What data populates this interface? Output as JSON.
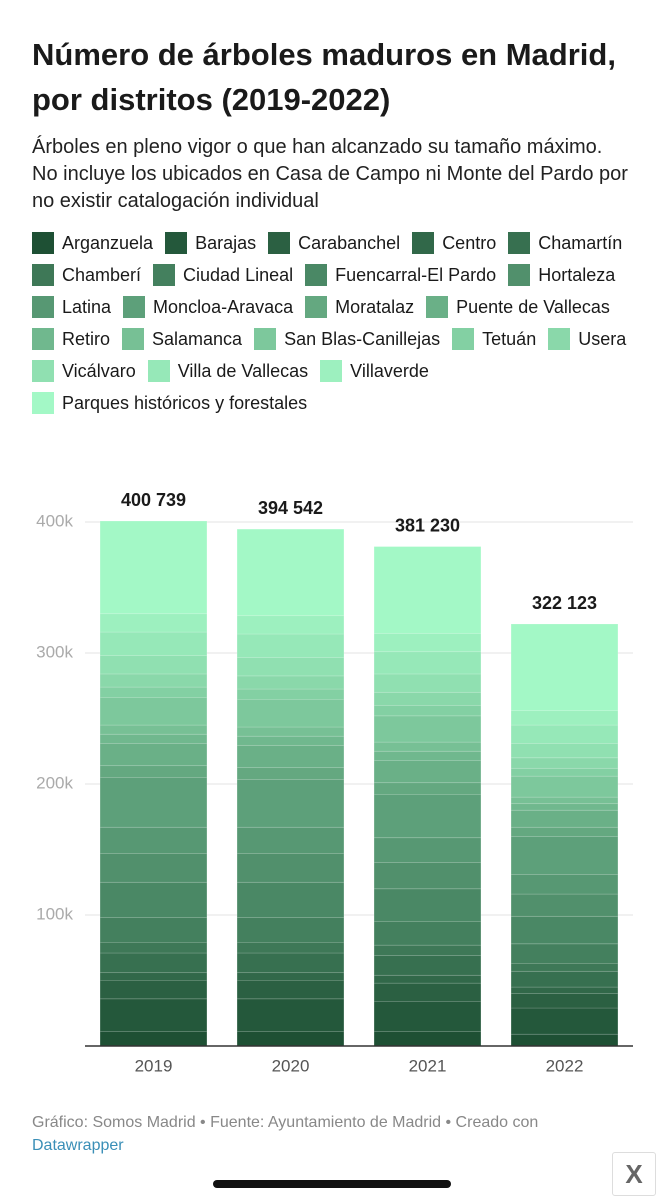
{
  "chart_data": {
    "type": "stacked_bar",
    "title": "Número de árboles maduros en Madrid, por distritos (2019-2022)",
    "subtitle": "Árboles en pleno vigor o que han alcanzado su tamaño máximo. No incluye los ubicados en Casa de Campo ni Monte del Pardo por no existir catalogación individual",
    "categories": [
      "2019",
      "2020",
      "2021",
      "2022"
    ],
    "series": [
      {
        "name": "Arganzuela",
        "color": "#1e5034",
        "values": [
          11000,
          11000,
          11000,
          9000
        ]
      },
      {
        "name": "Barajas",
        "color": "#24583b",
        "values": [
          25000,
          25000,
          23000,
          20000
        ]
      },
      {
        "name": "Carabanchel",
        "color": "#2b6042",
        "values": [
          14000,
          14000,
          14000,
          11000
        ]
      },
      {
        "name": "Centro",
        "color": "#316849",
        "values": [
          6000,
          6000,
          6000,
          5000
        ]
      },
      {
        "name": "Chamartín",
        "color": "#377050",
        "values": [
          15000,
          15000,
          15000,
          12000
        ]
      },
      {
        "name": "Chamberí",
        "color": "#3e7857",
        "values": [
          8000,
          8000,
          8000,
          6000
        ]
      },
      {
        "name": "Ciudad Lineal",
        "color": "#44805e",
        "values": [
          19000,
          19000,
          18000,
          15000
        ]
      },
      {
        "name": "Fuencarral-El Pardo",
        "color": "#4a8865",
        "values": [
          27000,
          27000,
          25000,
          21000
        ]
      },
      {
        "name": "Hortaleza",
        "color": "#51906c",
        "values": [
          22000,
          22000,
          20000,
          17000
        ]
      },
      {
        "name": "Latina",
        "color": "#579873",
        "values": [
          20000,
          20000,
          19000,
          15000
        ]
      },
      {
        "name": "Moncloa-Aravaca",
        "color": "#5da07a",
        "values": [
          38000,
          36500,
          33000,
          29000
        ]
      },
      {
        "name": "Moratalaz",
        "color": "#64a880",
        "values": [
          9000,
          9000,
          9000,
          7000
        ]
      },
      {
        "name": "Puente de Vallecas",
        "color": "#6ab087",
        "values": [
          17000,
          17000,
          17000,
          13000
        ]
      },
      {
        "name": "Retiro",
        "color": "#70b88e",
        "values": [
          7000,
          7000,
          7000,
          5000
        ]
      },
      {
        "name": "Salamanca",
        "color": "#77c095",
        "values": [
          7000,
          7000,
          7000,
          5000
        ]
      },
      {
        "name": "San Blas-Canillejas",
        "color": "#7dc89c",
        "values": [
          21000,
          21000,
          20000,
          16000
        ]
      },
      {
        "name": "Tetuán",
        "color": "#83d0a3",
        "values": [
          8000,
          8000,
          8000,
          6000
        ]
      },
      {
        "name": "Usera",
        "color": "#8ad8aa",
        "values": [
          10000,
          10000,
          10000,
          8000
        ]
      },
      {
        "name": "Vicálvaro",
        "color": "#90e0b1",
        "values": [
          14000,
          14000,
          14000,
          11000
        ]
      },
      {
        "name": "Villa de Vallecas",
        "color": "#96e8b8",
        "values": [
          18000,
          18000,
          17000,
          14000
        ]
      },
      {
        "name": "Villaverde",
        "color": "#9df0bf",
        "values": [
          14000,
          14000,
          14000,
          11000
        ]
      },
      {
        "name": "Parques históricos y forestales",
        "color": "#a3f8c6",
        "values": [
          70739,
          66042,
          66230,
          66123
        ]
      }
    ],
    "totals": [
      400739,
      394542,
      381230,
      322123
    ],
    "total_labels": [
      "400 739",
      "394 542",
      "381 230",
      "322 123"
    ],
    "ylim": [
      0,
      400000
    ],
    "yticks": [
      {
        "value": 100000,
        "label": "100k"
      },
      {
        "value": 200000,
        "label": "200k"
      },
      {
        "value": 300000,
        "label": "300k"
      },
      {
        "value": 400000,
        "label": "400k"
      }
    ],
    "grid": true,
    "source": "Gráfico: Somos Madrid • Fuente: Ayuntamiento de Madrid • Creado con",
    "source_link": "Datawrapper"
  }
}
